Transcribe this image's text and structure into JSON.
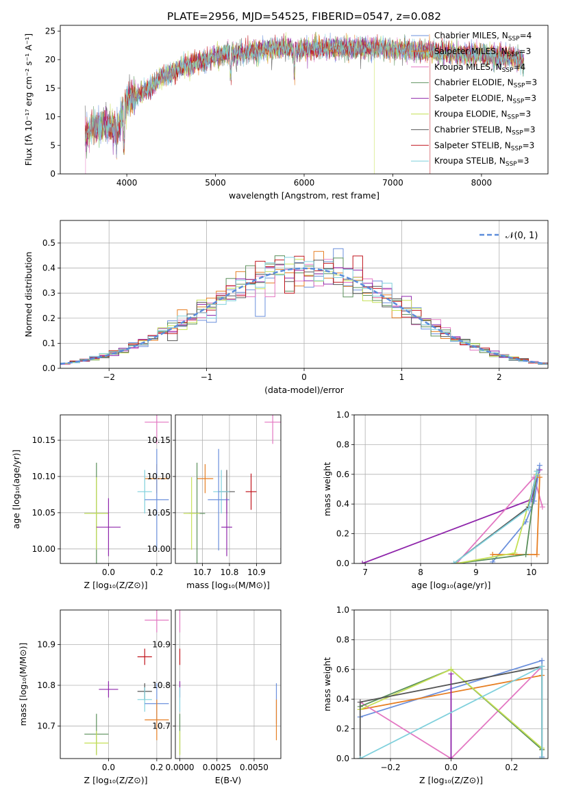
{
  "figure_title": "PLATE=2956, MJD=54525, FIBERID=0547, z=0.082",
  "colors": [
    "#6a8fdc",
    "#e67e22",
    "#e377c2",
    "#5a8f5a",
    "#8e24aa",
    "#c5e055",
    "#555555",
    "#c0141c",
    "#7fd0dc"
  ],
  "chart_data": [
    {
      "id": "spectrum",
      "type": "line",
      "title": "PLATE=2956, MJD=54525, FIBERID=0547, z=0.082",
      "xlabel": "wavelength [Angstrom, rest frame]",
      "ylabel": "Flux [fλ 10⁻¹⁷ erg cm⁻² s⁻¹ A⁻¹]",
      "xlim": [
        3250,
        8750
      ],
      "ylim": [
        0,
        26
      ],
      "xticks": [
        "4000",
        "5000",
        "6000",
        "7000",
        "8000"
      ],
      "yticks": [
        "0",
        "5",
        "10",
        "15",
        "20",
        "25"
      ],
      "x": [
        3530,
        3600,
        3700,
        3800,
        3900,
        3950,
        4000,
        4100,
        4200,
        4300,
        4400,
        4500,
        4600,
        4700,
        4800,
        4900,
        5000,
        5100,
        5200,
        5300,
        5400,
        5500,
        5600,
        5700,
        5800,
        5900,
        6000,
        6100,
        6200,
        6300,
        6400,
        6500,
        6600,
        6700,
        6800,
        6900,
        7000,
        7100,
        7200,
        7300,
        7400,
        7500,
        7600,
        7700,
        7800,
        7900,
        8000,
        8100,
        8200,
        8300,
        8400,
        8480
      ],
      "series_shape": [
        6.5,
        8.0,
        8.5,
        8.5,
        8.0,
        10.0,
        12.5,
        13.5,
        14.5,
        15.5,
        17.0,
        17.5,
        18.5,
        19.0,
        19.5,
        20.0,
        20.5,
        21.0,
        21.0,
        21.0,
        21.5,
        21.5,
        22.0,
        22.0,
        22.0,
        21.5,
        21.8,
        22.0,
        22.0,
        22.0,
        22.0,
        22.0,
        22.0,
        22.0,
        22.0,
        21.8,
        21.8,
        21.8,
        21.7,
        21.5,
        21.5,
        21.3,
        21.3,
        21.2,
        21.0,
        21.0,
        20.8,
        20.8,
        20.6,
        20.4,
        20.2,
        19.2
      ],
      "series": [
        {
          "name": "Chabrier MILES, N_SSP=4"
        },
        {
          "name": "Salpeter MILES, N_SSP=3"
        },
        {
          "name": "Kroupa MILES, N_SSP=4"
        },
        {
          "name": "Chabrier ELODIE, N_SSP=3"
        },
        {
          "name": "Salpeter ELODIE, N_SSP=3"
        },
        {
          "name": "Kroupa ELODIE, N_SSP=3"
        },
        {
          "name": "Chabrier STELIB, N_SSP=3"
        },
        {
          "name": "Salpeter STELIB, N_SSP=3"
        },
        {
          "name": "Kroupa STELIB, N_SSP=3"
        }
      ],
      "legend_placement": "upper-right",
      "grid": false
    },
    {
      "id": "residuals",
      "type": "line",
      "xlabel": "(data-model)/error",
      "ylabel": "Normed distribution",
      "xlim": [
        -2.5,
        2.5
      ],
      "ylim": [
        0,
        0.59
      ],
      "xticks": [
        "−2",
        "−1",
        "0",
        "1",
        "2"
      ],
      "yticks": [
        "0.0",
        "0.1",
        "0.2",
        "0.3",
        "0.4",
        "0.5"
      ],
      "legend": "𝒩(0, 1)",
      "legend_placement": "upper-right",
      "grid": true,
      "bin_width": 0.1,
      "reference_curve": "normal(0,1)"
    },
    {
      "id": "age_vs_Z",
      "type": "scatter",
      "xlabel": "Z [log₁₀(Z/Z⊙)]",
      "ylabel": "age  [log₁₀(age/yr)]",
      "xlim": [
        -0.2,
        0.26
      ],
      "ylim": [
        9.98,
        10.185
      ],
      "xticks": [
        "0.0",
        "0.2"
      ],
      "yticks": [
        "10.00",
        "10.05",
        "10.10",
        "10.15"
      ],
      "grid": true,
      "points": [
        {
          "x": 0.2,
          "y": 10.175,
          "xerr": 0.05,
          "yerr": 0.03,
          "c": 2
        },
        {
          "x": 0.2,
          "y": 10.097,
          "xerr": 0.05,
          "yerr": 0.02,
          "c": 1
        },
        {
          "x": 0.15,
          "y": 10.079,
          "xerr": 0.03,
          "yerr": 0.03,
          "c": 8
        },
        {
          "x": 0.2,
          "y": 10.068,
          "xerr": 0.05,
          "yerr": 0.07,
          "c": 0
        },
        {
          "x": -0.05,
          "y": 10.049,
          "xerr": 0.05,
          "yerr": 0.07,
          "c": 3
        },
        {
          "x": -0.05,
          "y": 10.049,
          "xerr": 0.05,
          "yerr": 0.05,
          "c": 5
        },
        {
          "x": 0.0,
          "y": 10.03,
          "xerr": 0.05,
          "yerr": 0.04,
          "c": 4
        }
      ]
    },
    {
      "id": "age_vs_mass",
      "type": "scatter",
      "xlabel": "mass [log₁₀(M/M⊙)]",
      "ylabel": "",
      "xlim": [
        10.6,
        10.99
      ],
      "ylim": [
        9.98,
        10.185
      ],
      "xticks": [
        "10.7",
        "10.8",
        "10.9"
      ],
      "yticks": [
        "10.00",
        "10.05",
        "10.10",
        "10.15"
      ],
      "grid": true,
      "points": [
        {
          "x": 10.96,
          "y": 10.175,
          "xerr": 0.03,
          "yerr": 0.03,
          "c": 2
        },
        {
          "x": 10.71,
          "y": 10.097,
          "xerr": 0.03,
          "yerr": 0.02,
          "c": 1
        },
        {
          "x": 10.88,
          "y": 10.079,
          "xerr": 0.02,
          "yerr": 0.025,
          "c": 7
        },
        {
          "x": 10.79,
          "y": 10.079,
          "xerr": 0.03,
          "yerr": 0.03,
          "c": 6
        },
        {
          "x": 10.77,
          "y": 10.079,
          "xerr": 0.03,
          "yerr": 0.03,
          "c": 8
        },
        {
          "x": 10.76,
          "y": 10.068,
          "xerr": 0.04,
          "yerr": 0.07,
          "c": 0
        },
        {
          "x": 10.68,
          "y": 10.049,
          "xerr": 0.03,
          "yerr": 0.07,
          "c": 3
        },
        {
          "x": 10.66,
          "y": 10.049,
          "xerr": 0.03,
          "yerr": 0.05,
          "c": 5
        },
        {
          "x": 10.79,
          "y": 10.03,
          "xerr": 0.02,
          "yerr": 0.04,
          "c": 4
        }
      ]
    },
    {
      "id": "mass_weight_vs_age",
      "type": "line",
      "xlabel": "age  [log₁₀(age/yr)]",
      "ylabel": "mass weight",
      "xlim": [
        6.8,
        10.3
      ],
      "ylim": [
        0,
        1
      ],
      "xticks": [
        "7",
        "8",
        "9",
        "10"
      ],
      "yticks": [
        "0.0",
        "0.2",
        "0.4",
        "0.6",
        "0.8",
        "1.0"
      ],
      "grid": true,
      "series": [
        {
          "c": 4,
          "x": [
            6.95,
            10.0,
            10.15
          ],
          "y": [
            0.0,
            0.43,
            0.63
          ]
        },
        {
          "c": 2,
          "x": [
            8.65,
            10.05,
            10.2
          ],
          "y": [
            0.0,
            0.58,
            0.38
          ]
        },
        {
          "c": 0,
          "x": [
            9.3,
            9.9,
            10.05,
            10.15
          ],
          "y": [
            0.01,
            0.28,
            0.42,
            0.66
          ]
        },
        {
          "c": 1,
          "x": [
            9.3,
            10.1,
            10.15
          ],
          "y": [
            0.06,
            0.06,
            0.58
          ]
        },
        {
          "c": 3,
          "x": [
            8.65,
            9.9,
            10.1
          ],
          "y": [
            0.0,
            0.06,
            0.62
          ]
        },
        {
          "c": 5,
          "x": [
            8.65,
            9.7,
            10.1
          ],
          "y": [
            0.0,
            0.07,
            0.6
          ]
        },
        {
          "c": 6,
          "x": [
            8.6,
            9.95,
            10.1
          ],
          "y": [
            0.0,
            0.38,
            0.62
          ]
        },
        {
          "c": 8,
          "x": [
            8.6,
            9.95,
            10.1
          ],
          "y": [
            0.0,
            0.37,
            0.62
          ]
        }
      ]
    },
    {
      "id": "mass_vs_Z",
      "type": "scatter",
      "xlabel": "Z [log₁₀(Z/Z⊙)]",
      "ylabel": "mass [log₁₀(M/M⊙)]",
      "xlim": [
        -0.2,
        0.26
      ],
      "ylim": [
        10.62,
        10.985
      ],
      "xticks": [
        "0.0",
        "0.2"
      ],
      "yticks": [
        "10.7",
        "10.8",
        "10.9"
      ],
      "grid": true,
      "points": [
        {
          "x": 0.2,
          "y": 10.96,
          "xerr": 0.05,
          "yerr": 0.03,
          "c": 2
        },
        {
          "x": 0.15,
          "y": 10.87,
          "xerr": 0.03,
          "yerr": 0.02,
          "c": 7
        },
        {
          "x": 0.0,
          "y": 10.79,
          "xerr": 0.04,
          "yerr": 0.02,
          "c": 4
        },
        {
          "x": 0.15,
          "y": 10.785,
          "xerr": 0.03,
          "yerr": 0.02,
          "c": 6
        },
        {
          "x": 0.15,
          "y": 10.765,
          "xerr": 0.03,
          "yerr": 0.03,
          "c": 8
        },
        {
          "x": 0.2,
          "y": 10.755,
          "xerr": 0.05,
          "yerr": 0.05,
          "c": 0
        },
        {
          "x": 0.2,
          "y": 10.715,
          "xerr": 0.05,
          "yerr": 0.05,
          "c": 1
        },
        {
          "x": -0.05,
          "y": 10.68,
          "xerr": 0.05,
          "yerr": 0.05,
          "c": 3
        },
        {
          "x": -0.05,
          "y": 10.658,
          "xerr": 0.05,
          "yerr": 0.03,
          "c": 5
        }
      ]
    },
    {
      "id": "mass_vs_EBV",
      "type": "scatter",
      "xlabel": "E(B-V)",
      "ylabel": "",
      "xlim": [
        -0.0003,
        0.0068
      ],
      "ylim": [
        10.62,
        10.985
      ],
      "xticks": [
        "0.0000",
        "0.0025",
        "0.0050"
      ],
      "yticks": [
        "10.7",
        "10.8",
        "10.9"
      ],
      "grid": true,
      "points": [
        {
          "x": 0.0,
          "y": 10.96,
          "xerr": 0,
          "yerr": 0.03,
          "c": 2
        },
        {
          "x": 0.0,
          "y": 10.87,
          "xerr": 0,
          "yerr": 0.02,
          "c": 7
        },
        {
          "x": 0.0,
          "y": 10.79,
          "xerr": 0,
          "yerr": 0.02,
          "c": 4
        },
        {
          "x": 0.0,
          "y": 10.765,
          "xerr": 0,
          "yerr": 0.03,
          "c": 8
        },
        {
          "x": 0.0,
          "y": 10.68,
          "xerr": 0,
          "yerr": 0.05,
          "c": 3
        },
        {
          "x": 0.0,
          "y": 10.658,
          "xerr": 0,
          "yerr": 0.03,
          "c": 5
        },
        {
          "x": 0.0065,
          "y": 10.755,
          "xerr": 0,
          "yerr": 0.05,
          "c": 0
        },
        {
          "x": 0.0065,
          "y": 10.715,
          "xerr": 0,
          "yerr": 0.05,
          "c": 1
        }
      ]
    },
    {
      "id": "mass_weight_vs_Z",
      "type": "line",
      "xlabel": "Z [log₁₀(Z/Z⊙)]",
      "ylabel": "mass weight",
      "xlim": [
        -0.32,
        0.32
      ],
      "ylim": [
        0,
        1
      ],
      "xticks": [
        "−0.2",
        "0.0",
        "0.2"
      ],
      "yticks": [
        "0.0",
        "0.2",
        "0.4",
        "0.6",
        "0.8",
        "1.0"
      ],
      "grid": true,
      "series": [
        {
          "c": 0,
          "x": [
            -0.3,
            0.3,
            0.3
          ],
          "y": [
            0.28,
            0.66,
            0.01
          ]
        },
        {
          "c": 1,
          "x": [
            -0.3,
            0.3,
            0.3
          ],
          "y": [
            0.33,
            0.56,
            0.06
          ]
        },
        {
          "c": 2,
          "x": [
            -0.3,
            0.0,
            0.3,
            0.3
          ],
          "y": [
            0.38,
            0.0,
            0.62,
            0.62
          ]
        },
        {
          "c": 3,
          "x": [
            -0.3,
            0.0,
            0.3,
            0.3
          ],
          "y": [
            0.35,
            0.6,
            0.06,
            0.0
          ]
        },
        {
          "c": 4,
          "x": [
            0.0,
            0.0
          ],
          "y": [
            0.0,
            0.57
          ]
        },
        {
          "c": 5,
          "x": [
            -0.3,
            0.0,
            0.3
          ],
          "y": [
            0.33,
            0.6,
            0.07
          ]
        },
        {
          "c": 6,
          "x": [
            -0.3,
            -0.3,
            0.3,
            0.3
          ],
          "y": [
            0.0,
            0.38,
            0.62,
            0.0
          ]
        },
        {
          "c": 8,
          "x": [
            -0.3,
            0.3,
            0.3
          ],
          "y": [
            0.0,
            0.62,
            0.0
          ]
        }
      ]
    }
  ]
}
